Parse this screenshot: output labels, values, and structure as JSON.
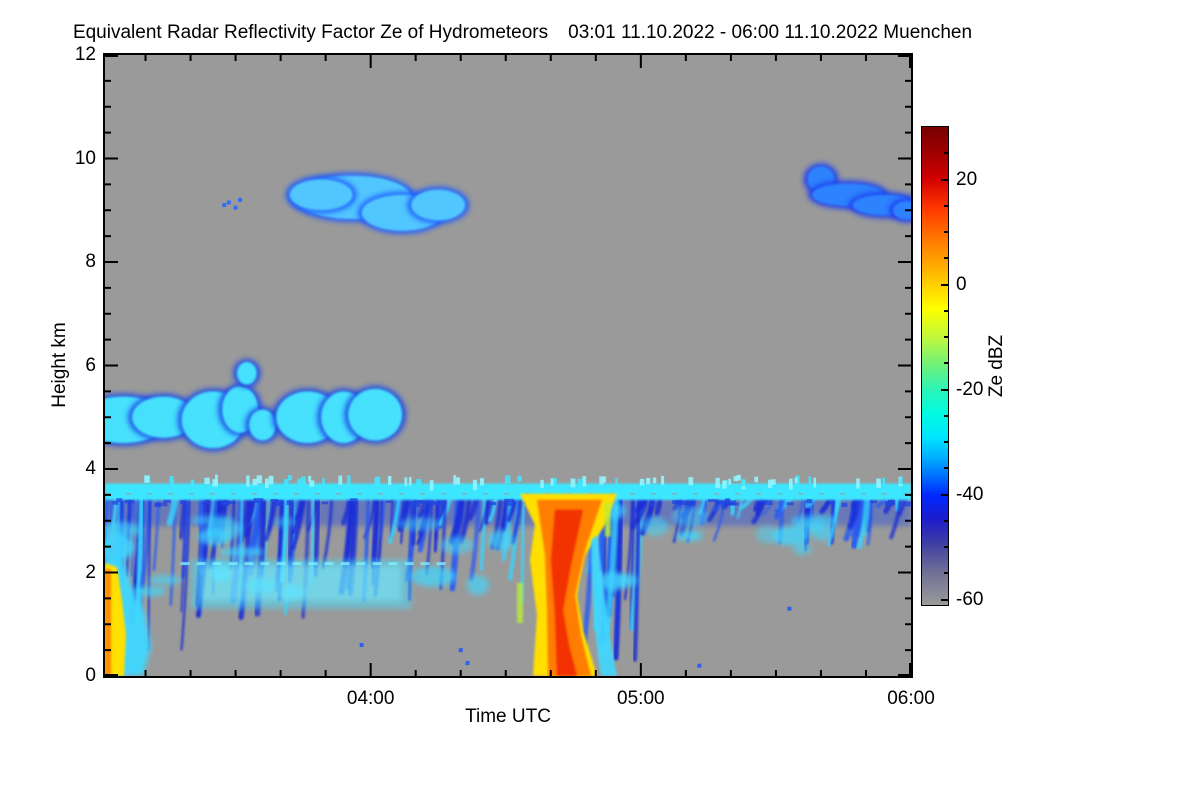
{
  "chart_data": {
    "type": "heatmap",
    "title": "Equivalent Radar Reflectivity Factor Ze of Hydrometeors",
    "subtitle": "03:01 11.10.2022 - 06:00 11.10.2022 Muenchen",
    "station": "Muenchen",
    "xlabel": "Time UTC",
    "ylabel": "Height km",
    "x_axis": {
      "start": "03:01",
      "end": "06:00",
      "duration_min": 179,
      "ticks": [
        {
          "t": 59,
          "label": "04:00"
        },
        {
          "t": 119,
          "label": "05:00"
        },
        {
          "t": 179,
          "label": "06:00"
        }
      ],
      "minor_step_min": 10
    },
    "y_axis": {
      "min": 0,
      "max": 12,
      "ticks": [
        0,
        2,
        4,
        6,
        8,
        10,
        12
      ],
      "minor_step_km": 0.5
    },
    "background_color": "#9a9a9a",
    "background_meaning": "below detection threshold / no echo",
    "colorbar": {
      "label": "Ze dBZ",
      "range_dbz": [
        -61,
        30
      ],
      "tick_values": [
        20,
        0,
        -20,
        -40,
        -60
      ],
      "tick_labels": [
        "20",
        "0",
        "-20",
        "-40",
        "-60"
      ],
      "minor_step_dbz": 5,
      "stops": [
        {
          "p": 0,
          "c": "#780000"
        },
        {
          "p": 5,
          "c": "#9b0000"
        },
        {
          "p": 11,
          "c": "#d40000"
        },
        {
          "p": 17,
          "c": "#ff3800"
        },
        {
          "p": 24,
          "c": "#ff7d00"
        },
        {
          "p": 30,
          "c": "#ffb300"
        },
        {
          "p": 34,
          "c": "#ffd900"
        },
        {
          "p": 38,
          "c": "#fdff00"
        },
        {
          "p": 44,
          "c": "#c0f83a"
        },
        {
          "p": 50,
          "c": "#6cf07c"
        },
        {
          "p": 55,
          "c": "#2bf4b9"
        },
        {
          "p": 60,
          "c": "#00fbe0"
        },
        {
          "p": 65,
          "c": "#00e4ff"
        },
        {
          "p": 69,
          "c": "#00b0ff"
        },
        {
          "p": 73,
          "c": "#0070ff"
        },
        {
          "p": 77,
          "c": "#0028ff"
        },
        {
          "p": 82,
          "c": "#1c1ccd"
        },
        {
          "p": 87,
          "c": "#3d3da5"
        },
        {
          "p": 93,
          "c": "#6f6f96"
        },
        {
          "p": 100,
          "c": "#9a9a9a"
        }
      ]
    },
    "features": [
      {
        "id": "left-precip-column",
        "kind": "column",
        "t": [
          0,
          6
        ],
        "km": [
          0,
          2.2
        ],
        "ze_dbz": "-5 to 10",
        "colors": {
          "core": "#ff8c00",
          "mid": "#ffe000",
          "fringe": "#3fd8ff"
        }
      },
      {
        "id": "stratus-layer",
        "kind": "layer",
        "t": [
          0,
          179
        ],
        "km": [
          3.4,
          3.72
        ],
        "ze_dbz": "-25 to -15",
        "colors": {
          "core": "#3ee6ff",
          "hi": "#8ff6ff",
          "dark": "#2244e0"
        },
        "seed": 5
      },
      {
        "id": "virga-left",
        "kind": "streaks",
        "t": [
          0,
          62
        ],
        "km": [
          1.1,
          3.5
        ],
        "density": 78,
        "deep_frac": 0.5,
        "ze_dbz": "-45 to -25",
        "seed": 11,
        "wisps": 12
      },
      {
        "id": "drizzle-band",
        "kind": "band",
        "t": [
          19,
          68
        ],
        "km": [
          1.3,
          2.25
        ],
        "ze_dbz": "-28 to -20",
        "colors": {
          "core": "#45dcff",
          "hi": "#7df0ff"
        }
      },
      {
        "id": "virga-mid",
        "kind": "streaks",
        "t": [
          62,
          98
        ],
        "km": [
          1.3,
          3.5
        ],
        "density": 44,
        "deep_frac": 0.3,
        "ze_dbz": "-45 to -28",
        "seed": 22,
        "wisps": 5
      },
      {
        "id": "precip-shaft",
        "kind": "shaft",
        "t": [
          94,
          110
        ],
        "km": [
          0,
          3.6
        ],
        "ze_dbz": "0 to 15",
        "colors": {
          "core": "#f23000",
          "mid": "#ff7d00",
          "outer": "#ffdf00",
          "accent": "#b8ee3a"
        }
      },
      {
        "id": "virga-after-shaft",
        "kind": "streaks",
        "t": [
          108,
          119
        ],
        "km": [
          0.3,
          3.5
        ],
        "density": 16,
        "deep_frac": 0.85,
        "ze_dbz": "-42 to -30",
        "seed": 33,
        "wisps": 3
      },
      {
        "id": "virga-right",
        "kind": "streaks",
        "t": [
          119,
          179
        ],
        "km": [
          2.45,
          3.5
        ],
        "density": 62,
        "deep_frac": 0.25,
        "ze_dbz": "-45 to -28",
        "seed": 44,
        "wisps": 9
      },
      {
        "id": "midlevel-cloud-row",
        "kind": "blobs",
        "t": [
          0,
          65
        ],
        "ze_dbz": "-35 to -20",
        "blobs": [
          [
            4,
            4.95,
            10,
            0.45
          ],
          [
            13,
            5.0,
            7,
            0.4
          ],
          [
            24,
            4.95,
            7,
            0.55
          ],
          [
            30,
            5.15,
            4,
            0.45
          ],
          [
            35,
            4.85,
            3,
            0.3
          ],
          [
            45,
            5.0,
            7,
            0.5
          ],
          [
            53,
            5.0,
            5,
            0.5
          ],
          [
            60,
            5.05,
            6,
            0.5
          ]
        ],
        "colors": {
          "core": "#49e8ff",
          "edge": "#1d49e8"
        }
      },
      {
        "id": "midlevel-puff",
        "kind": "blobs",
        "t": [
          30,
          34
        ],
        "ze_dbz": "-30",
        "blobs": [
          [
            31.5,
            5.85,
            2.2,
            0.22
          ]
        ],
        "colors": {
          "core": "#49e8ff",
          "edge": "#1d49e8"
        }
      },
      {
        "id": "cirrus-main",
        "kind": "blobs",
        "t": [
          42,
          85
        ],
        "ze_dbz": "-35 to -25",
        "blobs": [
          [
            55,
            9.25,
            13,
            0.42
          ],
          [
            66,
            8.95,
            9,
            0.35
          ],
          [
            48,
            9.3,
            7,
            0.3
          ],
          [
            74,
            9.1,
            6,
            0.3
          ]
        ],
        "colors": {
          "core": "#55ccff",
          "edge": "#1e5aff"
        }
      },
      {
        "id": "cirrus-specks",
        "kind": "specks",
        "ze_dbz": "-35",
        "pts": [
          [
            27.5,
            9.15
          ],
          [
            29,
            9.05
          ],
          [
            30,
            9.2
          ],
          [
            26.5,
            9.1
          ]
        ],
        "colors": {
          "core": "#2a6cff"
        }
      },
      {
        "id": "cirrus-right",
        "kind": "blobs",
        "t": [
          152,
          179
        ],
        "ze_dbz": "-40 to -30",
        "blobs": [
          [
            159,
            9.6,
            3,
            0.25
          ],
          [
            165,
            9.3,
            8,
            0.22
          ],
          [
            173,
            9.1,
            7,
            0.2
          ],
          [
            178,
            9.0,
            3,
            0.18
          ]
        ],
        "colors": {
          "core": "#2f86ff",
          "edge": "#1b3cf0"
        }
      },
      {
        "id": "ground-specks",
        "kind": "specks",
        "ze_dbz": "-40",
        "pts": [
          [
            57,
            0.6
          ],
          [
            79,
            0.5
          ],
          [
            80.5,
            0.25
          ],
          [
            132,
            0.2
          ],
          [
            152,
            1.3
          ]
        ],
        "colors": {
          "core": "#2a5cf0"
        }
      }
    ]
  }
}
